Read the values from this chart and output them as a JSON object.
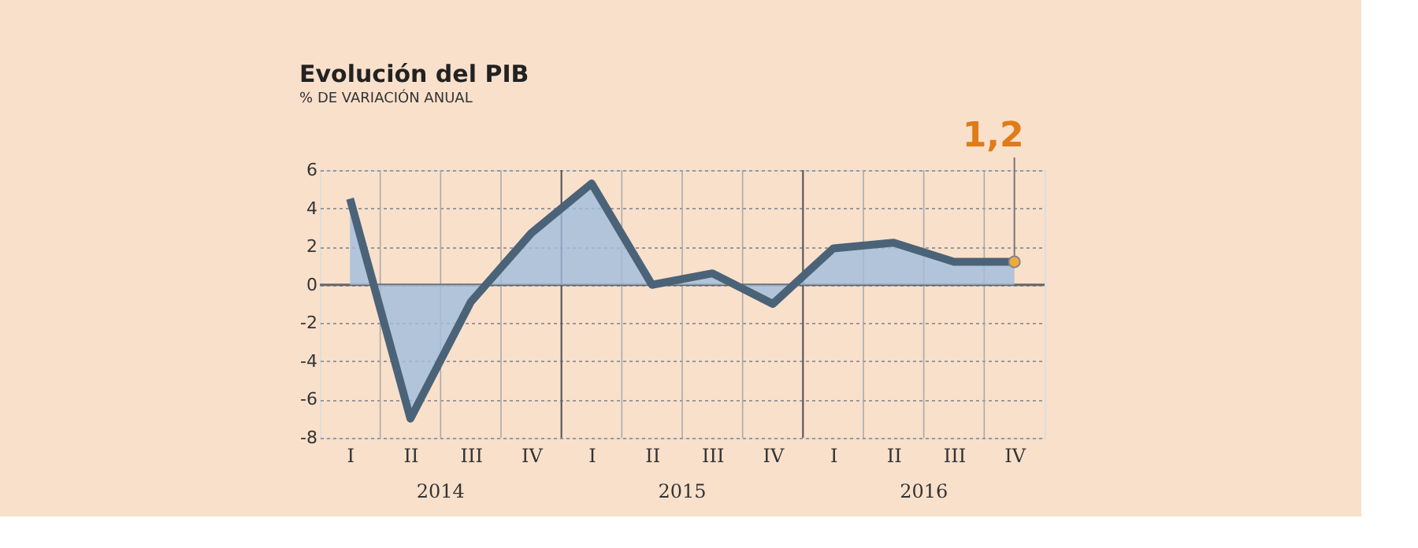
{
  "chart_data": {
    "type": "area",
    "title": "Evolución del PIB",
    "subtitle": "% DE VARIACIÓN ANUAL",
    "categories": [
      "I",
      "II",
      "III",
      "IV",
      "I",
      "II",
      "III",
      "IV",
      "I",
      "II",
      "III",
      "IV"
    ],
    "series": [
      {
        "color": "#4b6378",
        "values": [
          4.5,
          -7.0,
          -0.9,
          2.7,
          5.3,
          0.0,
          0.6,
          -1.0,
          1.9,
          2.2,
          1.2,
          1.2
        ],
        "value_labels": [
          null,
          null,
          null,
          null,
          null,
          null,
          null,
          null,
          null,
          null,
          null,
          "1,2"
        ]
      }
    ],
    "annotations": [
      "2014",
      "2015",
      "2016"
    ],
    "ylim": [
      -8,
      6
    ],
    "yticks": [
      -8,
      -6,
      -4,
      -2,
      0,
      2,
      4,
      6
    ],
    "grid": true,
    "marker": "none",
    "line_style": "solid"
  }
}
